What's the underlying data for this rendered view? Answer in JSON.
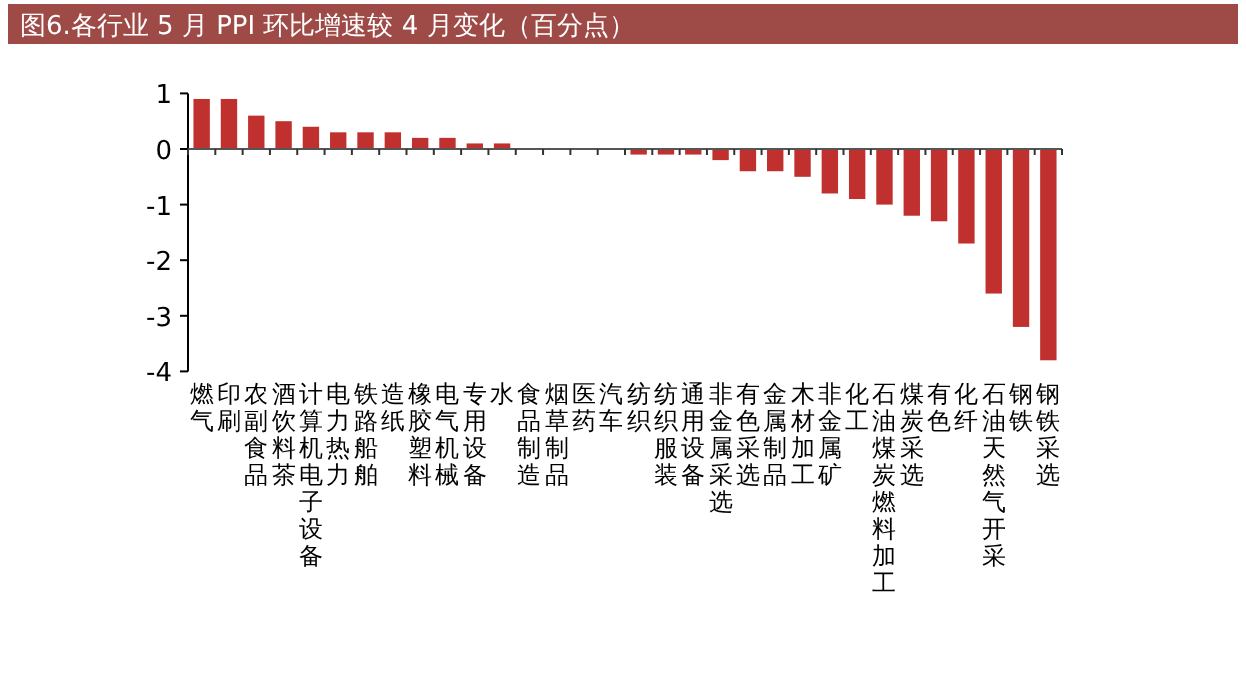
{
  "chart_data": {
    "type": "bar",
    "title": "图6.各行业 5 月 PPI 环比增速较 4 月变化（百分点）",
    "categories": [
      "燃气",
      "印刷",
      "农副食品",
      "酒饮料茶",
      "计算机电子设备",
      "电力热力",
      "铁路船舶",
      "造纸",
      "橡胶塑料",
      "电气机械",
      "专用设备",
      "水",
      "食品制造",
      "烟草制品",
      "医药",
      "汽车",
      "纺织",
      "纺织服装",
      "通用设备",
      "非金属采选",
      "有色采选",
      "金属制品",
      "木材加工",
      "非金属矿",
      "化工",
      "石油煤炭燃料加工",
      "煤炭采选",
      "有色",
      "化纤",
      "石油天然气开采",
      "钢铁",
      "钢铁采选"
    ],
    "values": [
      0.9,
      0.9,
      0.6,
      0.5,
      0.4,
      0.3,
      0.3,
      0.3,
      0.2,
      0.2,
      0.1,
      0.1,
      0,
      0,
      0,
      0,
      -0.1,
      -0.1,
      -0.1,
      -0.2,
      -0.4,
      -0.4,
      -0.5,
      -0.8,
      -0.9,
      -1.0,
      -1.2,
      -1.3,
      -1.7,
      -2.6,
      -3.2,
      -3.8
    ],
    "color": "#c0302e",
    "ylim": [
      -4,
      1
    ],
    "yticks": [
      -4,
      -3,
      -2,
      -1,
      0,
      1
    ]
  }
}
